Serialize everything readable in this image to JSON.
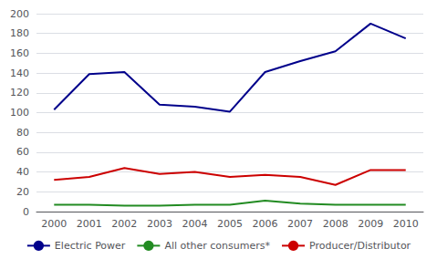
{
  "chart_data": {
    "type": "line",
    "categories": [
      2000,
      2001,
      2002,
      2003,
      2004,
      2005,
      2006,
      2007,
      2008,
      2009,
      2010
    ],
    "series": [
      {
        "name": "Electric Power",
        "color": "#00008B",
        "values": [
          103,
          139,
          141,
          108,
          106,
          101,
          141,
          152,
          162,
          190,
          175
        ]
      },
      {
        "name": "All other consumers*",
        "color": "#228B22",
        "values": [
          7,
          7,
          6,
          6,
          7,
          7,
          11,
          8,
          7,
          7,
          7
        ]
      },
      {
        "name": "Producer/Distributor",
        "color": "#CC0000",
        "values": [
          32,
          35,
          44,
          38,
          40,
          35,
          37,
          35,
          27,
          42,
          42
        ]
      }
    ],
    "ylim": [
      0,
      200
    ],
    "yticks": [
      0,
      20,
      40,
      60,
      80,
      100,
      120,
      140,
      160,
      180,
      200
    ],
    "grid": true,
    "legend": "bottom"
  }
}
